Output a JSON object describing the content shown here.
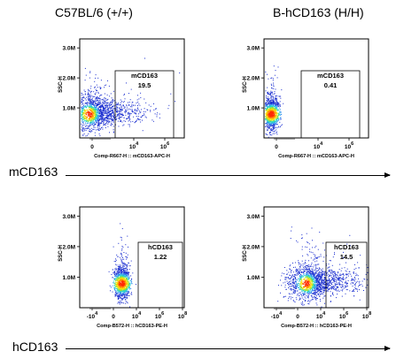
{
  "column_titles": [
    "C57BL/6 (+/+)",
    "B-hCD163 (H/H)"
  ],
  "row_labels": [
    "mCD163",
    "hCD163"
  ],
  "chart_data": [
    {
      "type": "scatter",
      "panel": "C57BL/6 (+/+) mCD163",
      "ylabel": "SSC-H",
      "xlabel": "Comp-R667-H :: mCD163-APC-H",
      "yticks": [
        "1.0M",
        "2.0M",
        "3.0M"
      ],
      "xticks": [
        "0",
        "10^4",
        "10^6"
      ],
      "gate": {
        "label": "mCD163",
        "percent": "19.5"
      },
      "population": {
        "center": [
          0.15,
          0.8
        ],
        "spread": "wide"
      }
    },
    {
      "type": "scatter",
      "panel": "B-hCD163 (H/H) mCD163",
      "ylabel": "SSC-H",
      "xlabel": "Comp-R667-H :: mCD163-APC-H",
      "yticks": [
        "1.0M",
        "2.0M",
        "3.0M"
      ],
      "xticks": [
        "0",
        "10^4",
        "10^6"
      ],
      "gate": {
        "label": "mCD163",
        "percent": "0.41"
      },
      "population": {
        "center": [
          0.0,
          0.8
        ],
        "spread": "narrow"
      }
    },
    {
      "type": "scatter",
      "panel": "C57BL/6 (+/+) hCD163",
      "ylabel": "SSC-H",
      "xlabel": "Comp-B572-H :: hCD163-PE-H",
      "yticks": [
        "1.0M",
        "2.0M",
        "3.0M"
      ],
      "xticks": [
        "-10^4",
        "0",
        "10^4",
        "10^6",
        "10^8"
      ],
      "gate": {
        "label": "hCD163",
        "percent": "1.22"
      },
      "population": {
        "center": [
          3.0,
          0.8
        ],
        "spread": "narrow"
      }
    },
    {
      "type": "scatter",
      "panel": "B-hCD163 (H/H) hCD163",
      "ylabel": "SSC-H",
      "xlabel": "Comp-B572-H :: hCD163-PE-H",
      "yticks": [
        "1.0M",
        "2.0M",
        "3.0M"
      ],
      "xticks": [
        "-10^4",
        "0",
        "10^4",
        "10^6",
        "10^8"
      ],
      "gate": {
        "label": "hCD163",
        "percent": "14.5"
      },
      "population": {
        "center": [
          3.0,
          0.8
        ],
        "spread": "wide"
      }
    }
  ]
}
